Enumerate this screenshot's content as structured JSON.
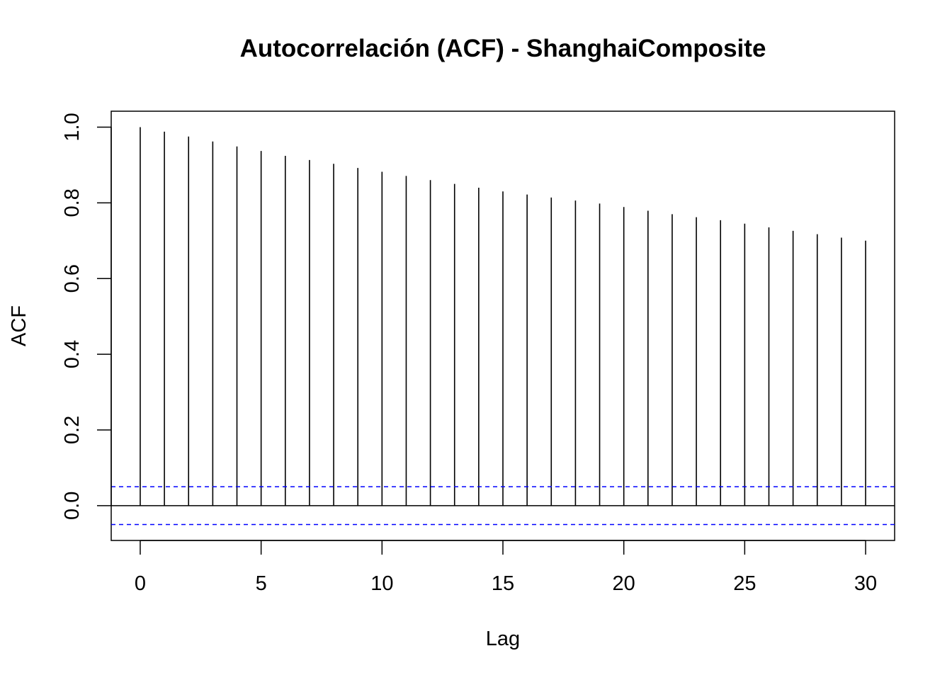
{
  "chart_data": {
    "type": "bar",
    "title": "Autocorrelación (ACF) - ShanghaiComposite",
    "xlabel": "Lag",
    "ylabel": "ACF",
    "x": [
      0,
      1,
      2,
      3,
      4,
      5,
      6,
      7,
      8,
      9,
      10,
      11,
      12,
      13,
      14,
      15,
      16,
      17,
      18,
      19,
      20,
      21,
      22,
      23,
      24,
      25,
      26,
      27,
      28,
      29,
      30
    ],
    "values": [
      1.0,
      0.988,
      0.975,
      0.962,
      0.949,
      0.937,
      0.924,
      0.913,
      0.903,
      0.892,
      0.882,
      0.871,
      0.86,
      0.85,
      0.84,
      0.83,
      0.822,
      0.814,
      0.806,
      0.798,
      0.789,
      0.779,
      0.77,
      0.762,
      0.754,
      0.745,
      0.735,
      0.726,
      0.717,
      0.708,
      0.7
    ],
    "confidence_bound": 0.05,
    "xlim": [
      -1.2,
      31.2
    ],
    "ylim": [
      -0.092,
      1.042
    ],
    "x_ticks": [
      0,
      5,
      10,
      15,
      20,
      25,
      30
    ],
    "y_ticks": [
      0.0,
      0.2,
      0.4,
      0.6,
      0.8,
      1.0
    ],
    "x_tick_labels": [
      "0",
      "5",
      "10",
      "15",
      "20",
      "25",
      "30"
    ],
    "y_tick_labels": [
      "0.0",
      "0.2",
      "0.4",
      "0.6",
      "0.8",
      "1.0"
    ],
    "colors": {
      "lag_lines": "#000000",
      "confidence_lines": "#0000ff",
      "zero_line": "#000000"
    },
    "grid": false
  }
}
